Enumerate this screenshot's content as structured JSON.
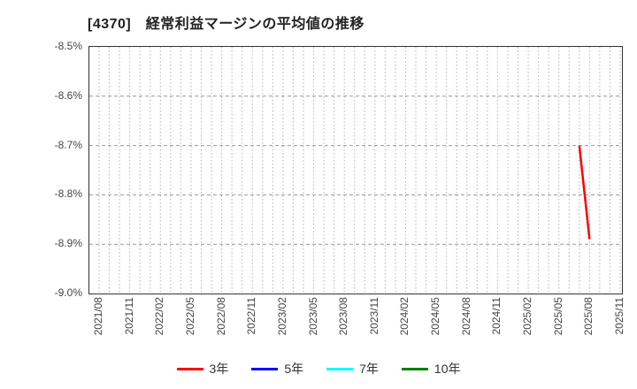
{
  "chart_data": {
    "type": "line",
    "title": "[4370]　経常利益マージンの平均値の推移",
    "xlabel": "",
    "ylabel": "",
    "ylim": [
      -9.0,
      -8.5
    ],
    "y_ticks": [
      "-8.5%",
      "-8.6%",
      "-8.7%",
      "-8.8%",
      "-8.9%",
      "-9.0%"
    ],
    "x_start": "2021/08",
    "x_end": "2025/11",
    "x_tick_labels": [
      "2021/08",
      "2021/11",
      "2022/02",
      "2022/05",
      "2022/08",
      "2022/11",
      "2023/02",
      "2023/05",
      "2023/08",
      "2023/11",
      "2024/02",
      "2024/05",
      "2024/08",
      "2024/11",
      "2025/02",
      "2025/05",
      "2025/08",
      "2025/11"
    ],
    "grid": true,
    "legend_position": "bottom",
    "series": [
      {
        "name": "3年",
        "color": "#ff0000",
        "points": [
          {
            "x": "2025/07",
            "y": -8.7
          },
          {
            "x": "2025/08",
            "y": -8.89
          }
        ]
      },
      {
        "name": "5年",
        "color": "#0000ff",
        "points": []
      },
      {
        "name": "7年",
        "color": "#00ffff",
        "points": []
      },
      {
        "name": "10年",
        "color": "#008000",
        "points": []
      }
    ]
  }
}
